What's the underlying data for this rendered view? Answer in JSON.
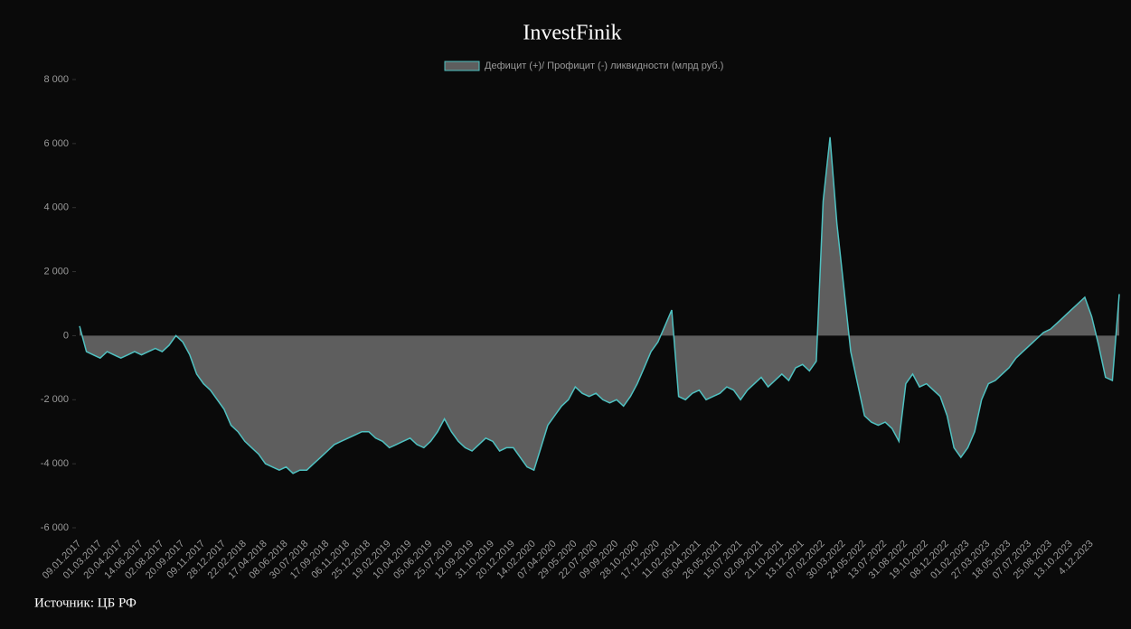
{
  "chart_data": {
    "type": "area",
    "title": "InvestFinik",
    "source": "Источник: ЦБ РФ",
    "categories": [
      "09.01.2017",
      null,
      null,
      "01.03.2017",
      null,
      null,
      "20.04.2017",
      null,
      null,
      "14.06.2017",
      null,
      null,
      "02.08.2017",
      null,
      null,
      "20.09.2017",
      null,
      null,
      "09.11.2017",
      null,
      null,
      "28.12.2017",
      null,
      null,
      "22.02.2018",
      null,
      null,
      "17.04.2018",
      null,
      null,
      "08.06.2018",
      null,
      null,
      "30.07.2018",
      null,
      null,
      "17.09.2018",
      null,
      null,
      "06.11.2018",
      null,
      null,
      "25.12.2018",
      null,
      null,
      "19.02.2019",
      null,
      null,
      "10.04.2019",
      null,
      null,
      "05.06.2019",
      null,
      null,
      "25.07.2019",
      null,
      null,
      "12.09.2019",
      null,
      null,
      "31.10.2019",
      null,
      null,
      "20.12.2019",
      null,
      null,
      "14.02.2020",
      null,
      null,
      "07.04.2020",
      null,
      null,
      "29.05.2020",
      null,
      null,
      "22.07.2020",
      null,
      null,
      "09.09.2020",
      null,
      null,
      "28.10.2020",
      null,
      null,
      "17.12.2020",
      null,
      null,
      "11.02.2021",
      null,
      null,
      "05.04.2021",
      null,
      null,
      "26.05.2021",
      null,
      null,
      "15.07.2021",
      null,
      null,
      "02.09.2021",
      null,
      null,
      "21.10.2021",
      null,
      null,
      "13.12.2021",
      null,
      null,
      "07.02.2022",
      null,
      null,
      "30.03.2022",
      null,
      null,
      "24.05.2022",
      null,
      null,
      "13.07.2022",
      null,
      null,
      "31.08.2022",
      null,
      null,
      "19.10.2022",
      null,
      null,
      "08.12.2022",
      null,
      null,
      "01.02.2023",
      null,
      null,
      "27.03.2023",
      null,
      null,
      "18.05.2023",
      null,
      null,
      "07.07.2023",
      null,
      null,
      "25.08.2023",
      null,
      null,
      "13.10.2023",
      null,
      null,
      "4.12.2023",
      null,
      null,
      null,
      null
    ],
    "series": [
      {
        "name": "Дефицит (+)/ Профицит (-) ликвидности (млрд руб.)",
        "color": "#4fc1c1",
        "fill": "#5e5e5e",
        "values": [
          300,
          -500,
          -600,
          -700,
          -500,
          -600,
          -700,
          -600,
          -500,
          -600,
          -500,
          -400,
          -500,
          -300,
          0,
          -200,
          -600,
          -1200,
          -1500,
          -1700,
          -2000,
          -2300,
          -2800,
          -3000,
          -3300,
          -3500,
          -3700,
          -4000,
          -4100,
          -4200,
          -4100,
          -4300,
          -4200,
          -4200,
          -4000,
          -3800,
          -3600,
          -3400,
          -3300,
          -3200,
          -3100,
          -3000,
          -3000,
          -3200,
          -3300,
          -3500,
          -3400,
          -3300,
          -3200,
          -3400,
          -3500,
          -3300,
          -3000,
          -2600,
          -3000,
          -3300,
          -3500,
          -3600,
          -3400,
          -3200,
          -3300,
          -3600,
          -3500,
          -3500,
          -3800,
          -4100,
          -4200,
          -3500,
          -2800,
          -2500,
          -2200,
          -2000,
          -1600,
          -1800,
          -1900,
          -1800,
          -2000,
          -2100,
          -2000,
          -2200,
          -1900,
          -1500,
          -1000,
          -500,
          -200,
          300,
          800,
          -1900,
          -2000,
          -1800,
          -1700,
          -2000,
          -1900,
          -1800,
          -1600,
          -1700,
          -2000,
          -1700,
          -1500,
          -1300,
          -1600,
          -1400,
          -1200,
          -1400,
          -1000,
          -900,
          -1100,
          -800,
          4200,
          6200,
          3500,
          1500,
          -500,
          -1500,
          -2500,
          -2700,
          -2800,
          -2700,
          -2900,
          -3300,
          -1500,
          -1200,
          -1600,
          -1500,
          -1700,
          -1900,
          -2500,
          -3500,
          -3800,
          -3500,
          -3000,
          -2000,
          -1500,
          -1400,
          -1200,
          -1000,
          -700,
          -500,
          -300,
          -100,
          100,
          200,
          400,
          600,
          800,
          1000,
          1200,
          600,
          -300,
          -1300,
          -1400,
          1300
        ]
      }
    ],
    "ylim": [
      -6000,
      8000
    ],
    "yticks": [
      {
        "value": -6000,
        "label": "-6 000"
      },
      {
        "value": -4000,
        "label": "-4 000"
      },
      {
        "value": -2000,
        "label": "-2 000"
      },
      0,
      {
        "value": 2000,
        "label": "2 000"
      },
      {
        "value": 4000,
        "label": "4 000"
      },
      {
        "value": 6000,
        "label": "6 000"
      },
      {
        "value": 8000,
        "label": "8 000"
      }
    ],
    "grid": false,
    "legend": "top"
  }
}
